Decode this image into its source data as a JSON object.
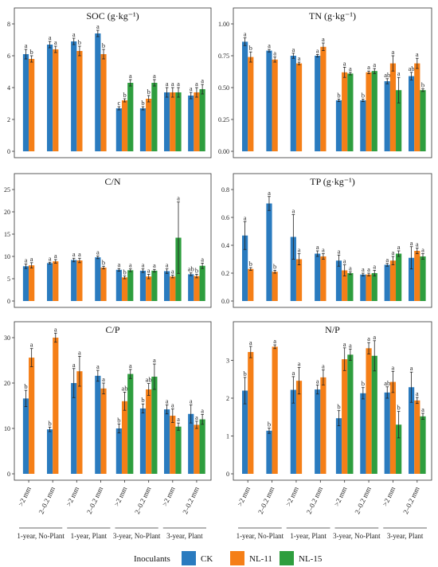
{
  "colors": {
    "CK": "#2a7bbf",
    "NL-11": "#f57f17",
    "NL-15": "#2e9e3e"
  },
  "legend": {
    "title": "Inoculants",
    "entries": [
      "CK",
      "NL-11",
      "NL-15"
    ]
  },
  "x_categories": [
    ">2 mm",
    "2–0.2 mm"
  ],
  "x_groups": [
    "1-year, No-Plant",
    "1-year, Plant",
    "3-year, No-Plant",
    "3-year, Plant"
  ],
  "chart_data": [
    {
      "type": "bar",
      "title": "SOC (g·kg⁻¹)",
      "ylim": [
        0,
        8
      ],
      "yticks": [
        0,
        2,
        4,
        6,
        8
      ],
      "yfmt": 0,
      "series_names": [
        "CK",
        "NL-11",
        "NL-15"
      ],
      "groups": [
        {
          "v": [
            6.1,
            5.8,
            null
          ],
          "e": [
            0.3,
            0.2,
            null
          ],
          "l": [
            "a",
            "b",
            null
          ]
        },
        {
          "v": [
            6.7,
            6.4,
            null
          ],
          "e": [
            0.2,
            0.2,
            null
          ],
          "l": [
            "a",
            "a",
            null
          ]
        },
        {
          "v": [
            6.9,
            6.3,
            null
          ],
          "e": [
            0.2,
            0.3,
            null
          ],
          "l": [
            "a",
            "b",
            null
          ]
        },
        {
          "v": [
            7.4,
            6.1,
            null
          ],
          "e": [
            0.2,
            0.3,
            null
          ],
          "l": [
            "a",
            "b",
            null
          ]
        },
        {
          "v": [
            2.7,
            3.2,
            4.3
          ],
          "e": [
            0.1,
            0.1,
            0.2
          ],
          "l": [
            "c",
            "b",
            "a"
          ]
        },
        {
          "v": [
            2.7,
            3.3,
            4.3
          ],
          "e": [
            0.1,
            0.2,
            0.2
          ],
          "l": [
            "b",
            "b",
            "a"
          ]
        },
        {
          "v": [
            3.7,
            3.7,
            3.7
          ],
          "e": [
            0.3,
            0.3,
            0.3
          ],
          "l": [
            "a",
            "a",
            "a"
          ]
        },
        {
          "v": [
            3.5,
            3.7,
            3.9
          ],
          "e": [
            0.2,
            0.3,
            0.3
          ],
          "l": [
            "a",
            "a",
            "a"
          ]
        }
      ]
    },
    {
      "type": "bar",
      "title": "TN (g·kg⁻¹)",
      "ylim": [
        0,
        1.0
      ],
      "yticks": [
        0,
        0.25,
        0.5,
        0.75,
        1.0
      ],
      "yfmt": 2,
      "series_names": [
        "CK",
        "NL-11",
        "NL-15"
      ],
      "groups": [
        {
          "v": [
            0.86,
            0.74,
            null
          ],
          "e": [
            0.03,
            0.04,
            null
          ],
          "l": [
            "a",
            "b",
            null
          ]
        },
        {
          "v": [
            0.79,
            0.72,
            null
          ],
          "e": [
            0.01,
            0.02,
            null
          ],
          "l": [
            "a",
            "a",
            null
          ]
        },
        {
          "v": [
            0.75,
            0.69,
            null
          ],
          "e": [
            0.02,
            0.01,
            null
          ],
          "l": [
            "a",
            "a",
            null
          ]
        },
        {
          "v": [
            0.75,
            0.82,
            null
          ],
          "e": [
            0.01,
            0.03,
            null
          ],
          "l": [
            "a",
            "a",
            null
          ]
        },
        {
          "v": [
            0.4,
            0.62,
            0.61
          ],
          "e": [
            0.01,
            0.04,
            0.01
          ],
          "l": [
            "b",
            "a",
            "a"
          ]
        },
        {
          "v": [
            0.4,
            0.62,
            0.63
          ],
          "e": [
            0.01,
            0.01,
            0.02
          ],
          "l": [
            "b",
            "a",
            "a"
          ]
        },
        {
          "v": [
            0.55,
            0.69,
            0.48
          ],
          "e": [
            0.02,
            0.06,
            0.1
          ],
          "l": [
            "ab",
            "a",
            "a"
          ]
        },
        {
          "v": [
            0.59,
            0.69,
            0.48
          ],
          "e": [
            0.03,
            0.04,
            0.01
          ],
          "l": [
            "ab",
            "a",
            "b"
          ]
        }
      ]
    },
    {
      "type": "bar",
      "title": "C/N",
      "ylim": [
        0,
        25
      ],
      "yticks": [
        0,
        5,
        10,
        15,
        20,
        25
      ],
      "yfmt": 0,
      "series_names": [
        "CK",
        "NL-11",
        "NL-15"
      ],
      "groups": [
        {
          "v": [
            7.8,
            8.0,
            null
          ],
          "e": [
            0.5,
            0.6,
            null
          ],
          "l": [
            "a",
            "a",
            null
          ]
        },
        {
          "v": [
            8.5,
            8.9,
            null
          ],
          "e": [
            0.2,
            0.4,
            null
          ],
          "l": [
            "a",
            "a",
            null
          ]
        },
        {
          "v": [
            9.2,
            9.1,
            null
          ],
          "e": [
            0.4,
            0.5,
            null
          ],
          "l": [
            "a",
            "a",
            null
          ]
        },
        {
          "v": [
            9.8,
            7.5,
            null
          ],
          "e": [
            0.3,
            0.3,
            null
          ],
          "l": [
            "a",
            "b",
            null
          ]
        },
        {
          "v": [
            7.0,
            5.3,
            6.9
          ],
          "e": [
            0.3,
            0.3,
            0.3
          ],
          "l": [
            "a",
            "b",
            "a"
          ]
        },
        {
          "v": [
            6.8,
            5.5,
            6.8
          ],
          "e": [
            0.4,
            0.5,
            0.3
          ],
          "l": [
            "a",
            "a",
            "a"
          ]
        },
        {
          "v": [
            6.7,
            5.5,
            14.2
          ],
          "e": [
            0.5,
            0.3,
            8.0
          ],
          "l": [
            "a",
            "a",
            "a"
          ]
        },
        {
          "v": [
            6.0,
            5.6,
            7.9
          ],
          "e": [
            0.3,
            0.4,
            0.6
          ],
          "l": [
            "ab",
            "b",
            "a"
          ]
        }
      ]
    },
    {
      "type": "bar",
      "title": "TP (g·kg⁻¹)",
      "ylim": [
        0,
        0.8
      ],
      "yticks": [
        0,
        0.2,
        0.4,
        0.6,
        0.8
      ],
      "yfmt": 1,
      "series_names": [
        "CK",
        "NL-11",
        "NL-15"
      ],
      "groups": [
        {
          "v": [
            0.47,
            0.23,
            null
          ],
          "e": [
            0.1,
            0.01,
            null
          ],
          "l": [
            "a",
            "b",
            null
          ]
        },
        {
          "v": [
            0.7,
            0.21,
            null
          ],
          "e": [
            0.05,
            0.01,
            null
          ],
          "l": [
            "a",
            "b",
            null
          ]
        },
        {
          "v": [
            0.46,
            0.3,
            null
          ],
          "e": [
            0.16,
            0.04,
            null
          ],
          "l": [
            "a",
            "a",
            null
          ]
        },
        {
          "v": [
            0.34,
            0.32,
            null
          ],
          "e": [
            0.02,
            0.02,
            null
          ],
          "l": [
            "a",
            "a",
            null
          ]
        },
        {
          "v": [
            0.29,
            0.22,
            0.2
          ],
          "e": [
            0.04,
            0.04,
            0.01
          ],
          "l": [
            "a",
            "a",
            "a"
          ]
        },
        {
          "v": [
            0.19,
            0.19,
            0.2
          ],
          "e": [
            0.01,
            0.01,
            0.02
          ],
          "l": [
            "a",
            "a",
            "a"
          ]
        },
        {
          "v": [
            0.26,
            0.29,
            0.34
          ],
          "e": [
            0.01,
            0.03,
            0.02
          ],
          "l": [
            "a",
            "a",
            "a"
          ]
        },
        {
          "v": [
            0.31,
            0.36,
            0.32
          ],
          "e": [
            0.08,
            0.02,
            0.02
          ],
          "l": [
            "a",
            "a",
            "a"
          ]
        }
      ]
    },
    {
      "type": "bar",
      "title": "C/P",
      "ylim": [
        0,
        30
      ],
      "yticks": [
        0,
        10,
        20,
        30
      ],
      "yfmt": 0,
      "series_names": [
        "CK",
        "NL-11",
        "NL-15"
      ],
      "groups": [
        {
          "v": [
            16.6,
            25.6,
            null
          ],
          "e": [
            1.8,
            2.0,
            null
          ],
          "l": [
            "b",
            "a",
            null
          ]
        },
        {
          "v": [
            9.8,
            30.0,
            null
          ],
          "e": [
            0.5,
            1.0,
            null
          ],
          "l": [
            "b",
            "a",
            null
          ]
        },
        {
          "v": [
            20.0,
            22.6,
            null
          ],
          "e": [
            3.2,
            3.3,
            null
          ],
          "l": [
            "a",
            "a",
            null
          ]
        },
        {
          "v": [
            21.6,
            18.8,
            null
          ],
          "e": [
            1.2,
            1.2,
            null
          ],
          "l": [
            "a",
            "a",
            null
          ]
        },
        {
          "v": [
            10.0,
            16.0,
            22.0
          ],
          "e": [
            1.0,
            2.0,
            1.0
          ],
          "l": [
            "b",
            "ab",
            "a"
          ]
        },
        {
          "v": [
            14.4,
            18.6,
            21.4
          ],
          "e": [
            1.0,
            1.3,
            2.8
          ],
          "l": [
            "b",
            "ab",
            "a"
          ]
        },
        {
          "v": [
            14.2,
            12.8,
            10.4
          ],
          "e": [
            1.0,
            1.5,
            0.8
          ],
          "l": [
            "a",
            "a",
            "a"
          ]
        },
        {
          "v": [
            13.2,
            10.8,
            12.0
          ],
          "e": [
            2.0,
            0.8,
            1.1
          ],
          "l": [
            "a",
            "a",
            "a"
          ]
        }
      ]
    },
    {
      "type": "bar",
      "title": "N/P",
      "ylim": [
        0,
        3.6
      ],
      "yticks": [
        0,
        1,
        2,
        3
      ],
      "yfmt": 0,
      "series_names": [
        "CK",
        "NL-11",
        "NL-15"
      ],
      "groups": [
        {
          "v": [
            2.2,
            3.22,
            null
          ],
          "e": [
            0.35,
            0.15,
            null
          ],
          "l": [
            "b",
            "a",
            null
          ]
        },
        {
          "v": [
            1.14,
            3.36,
            null
          ],
          "e": [
            0.07,
            0.05,
            null
          ],
          "l": [
            "b",
            "a",
            null
          ]
        },
        {
          "v": [
            2.22,
            2.46,
            null
          ],
          "e": [
            0.35,
            0.35,
            null
          ],
          "l": [
            "a",
            "a",
            null
          ]
        },
        {
          "v": [
            2.23,
            2.55,
            null
          ],
          "e": [
            0.12,
            0.2,
            null
          ],
          "l": [
            "a",
            "a",
            null
          ]
        },
        {
          "v": [
            1.47,
            3.03,
            3.15
          ],
          "e": [
            0.2,
            0.3,
            0.15
          ],
          "l": [
            "b",
            "a",
            "a"
          ]
        },
        {
          "v": [
            2.13,
            3.32,
            3.12
          ],
          "e": [
            0.15,
            0.15,
            0.4
          ],
          "l": [
            "b",
            "a",
            "a"
          ]
        },
        {
          "v": [
            2.15,
            2.43,
            1.3
          ],
          "e": [
            0.15,
            0.28,
            0.35
          ],
          "l": [
            "ab",
            "a",
            "b"
          ]
        },
        {
          "v": [
            2.29,
            1.94,
            1.52
          ],
          "e": [
            0.4,
            0.08,
            0.08
          ],
          "l": [
            "a",
            "a",
            "a"
          ]
        }
      ]
    }
  ]
}
